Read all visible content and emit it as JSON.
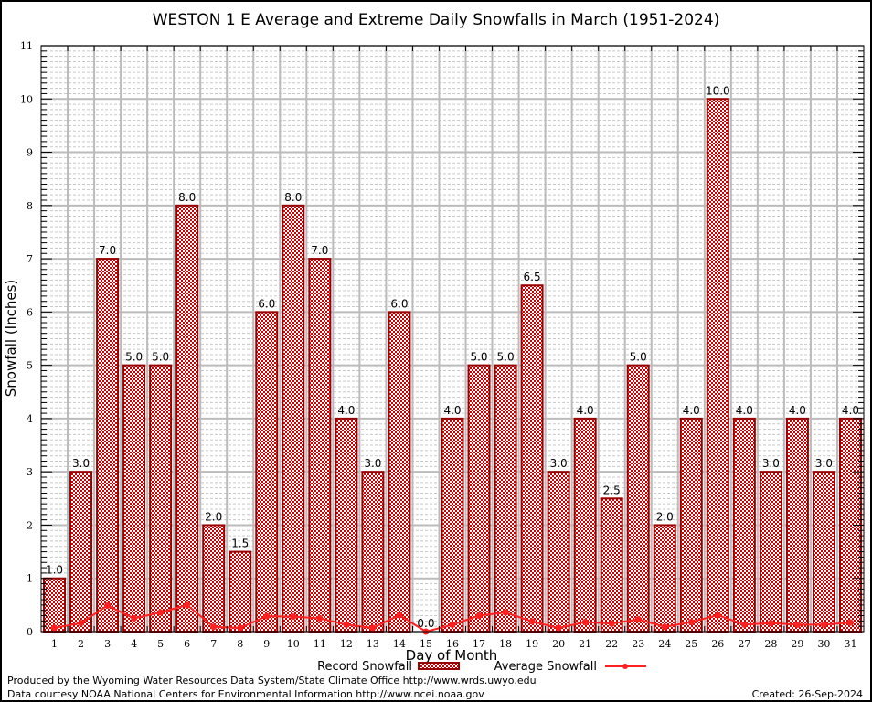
{
  "chart_data": {
    "type": "bar",
    "title": "WESTON 1 E Average and Extreme Daily Snowfalls in March (1951-2024)",
    "xlabel": "Day of Month",
    "ylabel": "Snowfall (Inches)",
    "ylim": [
      0,
      11
    ],
    "yticks": [
      "0",
      "1",
      "2",
      "3",
      "4",
      "5",
      "6",
      "7",
      "8",
      "9",
      "10",
      "11"
    ],
    "grid": true,
    "legend_position": "bottom",
    "categories": [
      "1",
      "2",
      "3",
      "4",
      "5",
      "6",
      "7",
      "8",
      "9",
      "10",
      "11",
      "12",
      "13",
      "14",
      "15",
      "16",
      "17",
      "18",
      "19",
      "20",
      "21",
      "22",
      "23",
      "24",
      "25",
      "26",
      "27",
      "28",
      "29",
      "30",
      "31"
    ],
    "series": [
      {
        "name": "Record Snowfall",
        "type": "bar",
        "color": "#990000",
        "values": [
          1.0,
          3.0,
          7.0,
          5.0,
          5.0,
          8.0,
          2.0,
          1.5,
          6.0,
          8.0,
          7.0,
          4.0,
          3.0,
          6.0,
          0.0,
          4.0,
          5.0,
          5.0,
          6.5,
          3.0,
          4.0,
          2.5,
          5.0,
          2.0,
          4.0,
          10.0,
          4.0,
          3.0,
          4.0,
          3.0,
          4.0
        ],
        "labels": [
          "1.0",
          "3.0",
          "7.0",
          "5.0",
          "5.0",
          "8.0",
          "2.0",
          "1.5",
          "6.0",
          "8.0",
          "7.0",
          "4.0",
          "3.0",
          "6.0",
          "0.0",
          "4.0",
          "5.0",
          "5.0",
          "6.5",
          "3.0",
          "4.0",
          "2.5",
          "5.0",
          "2.0",
          "4.0",
          "10.0",
          "4.0",
          "3.0",
          "4.0",
          "3.0",
          "4.0"
        ]
      },
      {
        "name": "Average Snowfall",
        "type": "line",
        "color": "#ff2020",
        "values": [
          0.07,
          0.16,
          0.49,
          0.25,
          0.36,
          0.5,
          0.09,
          0.07,
          0.29,
          0.28,
          0.25,
          0.13,
          0.07,
          0.31,
          0.0,
          0.13,
          0.3,
          0.36,
          0.19,
          0.07,
          0.18,
          0.15,
          0.23,
          0.09,
          0.18,
          0.31,
          0.13,
          0.16,
          0.13,
          0.13,
          0.17
        ]
      }
    ]
  },
  "footer": {
    "produced_by": "Produced by the Wyoming Water Resources Data System/State Climate Office http://www.wrds.uwyo.edu",
    "courtesy": "Data courtesy NOAA National Centers for Environmental Information http://www.ncei.noaa.gov",
    "created": "Created: 26-Sep-2024"
  }
}
